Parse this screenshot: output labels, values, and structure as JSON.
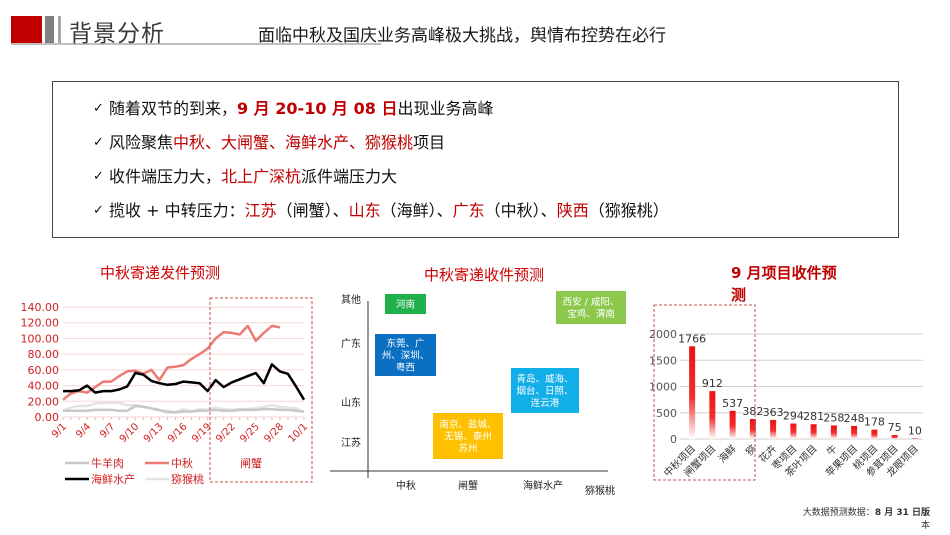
{
  "header": {
    "title": "背景分析",
    "subtitle": "面临中秋及国庆业务高峰极大挑战，舆情布控势在必行"
  },
  "bullets": [
    {
      "check": "✓",
      "segments": [
        {
          "t": "随着双节的到来，",
          "s": "n"
        },
        {
          "t": "9 月 20-10 月 08 日",
          "s": "hlb"
        },
        {
          "t": "出现业务高峰",
          "s": "n"
        }
      ]
    },
    {
      "check": "✓",
      "segments": [
        {
          "t": "风险聚焦",
          "s": "n"
        },
        {
          "t": "中秋、大闸蟹、海鲜水产、猕猴桃",
          "s": "hl"
        },
        {
          "t": "项目",
          "s": "n"
        }
      ]
    },
    {
      "check": "✓",
      "segments": [
        {
          "t": "收件端压力大，",
          "s": "n"
        },
        {
          "t": "北上广深杭",
          "s": "hl"
        },
        {
          "t": "派件端压力大",
          "s": "n"
        }
      ]
    },
    {
      "check": "✓",
      "segments": [
        {
          "t": "揽收 + 中转压力：",
          "s": "n"
        },
        {
          "t": "江苏",
          "s": "hl"
        },
        {
          "t": "（闸蟹）、",
          "s": "n"
        },
        {
          "t": "山东",
          "s": "hl"
        },
        {
          "t": "（海鲜）、",
          "s": "n"
        },
        {
          "t": "广东",
          "s": "hl"
        },
        {
          "t": "（中秋）、",
          "s": "n"
        },
        {
          "t": "陕西",
          "s": "hl"
        },
        {
          "t": "（猕猴桃）",
          "s": "n"
        }
      ]
    }
  ],
  "footer": {
    "line1": "大数据预测数据：",
    "date": "8 月 31 日版",
    "line2": "本"
  },
  "colors": {
    "accent_red": "#c00000",
    "title_red": "#d00000",
    "line_zhongqiu": "#ec7a74",
    "line_haixian": "#000000",
    "line_niuyangrou": "#c8c8c8",
    "line_mihoutao": "#e4e4e4",
    "bar_red": "#ee1111",
    "box_green": "#22b04b",
    "box_blue": "#0b6fc2",
    "box_cyan": "#12aee8",
    "box_yellow": "#ffc000",
    "box_lightgreen": "#8cc84b"
  },
  "chart_data": [
    {
      "type": "line",
      "title": "中秋寄递发件预测",
      "xlabel": "",
      "ylabel": "",
      "ylim": [
        0,
        140
      ],
      "yticks": [
        "0.00",
        "20.00",
        "40.00",
        "60.00",
        "80.00",
        "100.00",
        "120.00",
        "140.00"
      ],
      "x": [
        "9/1",
        "9/2",
        "9/3",
        "9/4",
        "9/5",
        "9/6",
        "9/7",
        "9/8",
        "9/9",
        "9/10",
        "9/11",
        "9/12",
        "9/13",
        "9/14",
        "9/15",
        "9/16",
        "9/17",
        "9/18",
        "9/19",
        "9/20",
        "9/21",
        "9/22",
        "9/23",
        "9/24",
        "9/25",
        "9/26",
        "9/27",
        "9/28",
        "9/29",
        "9/30",
        "10/1"
      ],
      "xtick_labels": [
        "9/1",
        "9/4",
        "9/7",
        "9/10",
        "9/13",
        "9/16",
        "9/19",
        "9/22",
        "9/25",
        "9/28",
        "10/1"
      ],
      "series": [
        {
          "name": "中秋",
          "values": [
            22,
            30,
            33,
            31,
            38,
            45,
            45,
            52,
            58,
            59,
            55,
            60,
            47,
            63,
            64,
            66,
            74,
            80,
            87,
            100,
            108,
            107,
            105,
            116,
            97,
            107,
            116,
            114,
            null,
            null,
            null
          ]
        },
        {
          "name": "海鲜水产",
          "values": [
            33,
            33,
            34,
            40,
            31,
            33,
            33,
            35,
            39,
            56,
            54,
            46,
            43,
            41,
            42,
            45,
            44,
            43,
            33,
            47,
            38,
            44,
            48,
            52,
            56,
            43,
            67,
            58,
            55,
            39,
            22
          ]
        },
        {
          "name": "牛羊肉",
          "values": [
            8,
            8,
            8,
            8,
            9,
            9,
            9,
            8,
            8,
            14,
            13,
            11,
            9,
            6,
            6,
            7,
            7,
            8,
            8,
            9,
            8,
            8,
            9,
            9,
            9,
            10,
            10,
            9,
            9,
            8,
            7
          ]
        },
        {
          "name": "猕猴桃",
          "values": [
            8,
            12,
            14,
            14,
            17,
            18,
            18,
            18,
            15,
            15,
            13,
            11,
            8,
            8,
            6,
            10,
            7,
            10,
            9,
            12,
            10,
            9,
            10,
            10,
            11,
            13,
            15,
            13,
            12,
            11,
            6
          ]
        },
        {
          "name": "闸蟹",
          "values": []
        }
      ],
      "highlight_range": [
        "9/20",
        "10/1"
      ],
      "legend": [
        "牛羊肉",
        "中秋",
        "闸蟹",
        "海鲜水产",
        "猕猴桃"
      ],
      "legend_position": "bottom",
      "grid": true
    },
    {
      "type": "table",
      "title": "中秋寄递收件预测",
      "y_categories": [
        "江苏",
        "山东",
        "广东",
        "其他"
      ],
      "x_categories": [
        "中秋",
        "闸蟹",
        "海鲜水产",
        "猕猴桃"
      ],
      "cells": [
        {
          "x": "中秋",
          "y": "其他",
          "text": "河南",
          "color": "#22b04b"
        },
        {
          "x": "中秋",
          "y": "广东",
          "text": "东莞、广州、深圳、粤西",
          "color": "#0b6fc2"
        },
        {
          "x": "闸蟹",
          "y": "江苏",
          "text": "南京、盐城、无锡、泰州苏州",
          "color": "#ffc000"
        },
        {
          "x": "海鲜水产",
          "y": "山东",
          "text": "青岛、威海、烟台、日照、连云港",
          "color": "#12aee8"
        },
        {
          "x": "猕猴桃",
          "y": "其他",
          "text": "西安 / 咸阳、宝鸡、渭南",
          "color": "#8cc84b"
        }
      ]
    },
    {
      "type": "bar",
      "title": "9 月项目收件预测",
      "categories": [
        "中秋项目",
        "闸蟹项目",
        "海鲜",
        "猕",
        "花卉",
        "枣项目",
        "茶叶项目",
        "牛",
        "苹果项目",
        "桃项目",
        "参茸项目",
        "龙眼项目"
      ],
      "values": [
        1766,
        912,
        537,
        382,
        363,
        294,
        281,
        258,
        248,
        178,
        75,
        10
      ],
      "ylim": [
        0,
        2000
      ],
      "yticks": [
        "0",
        "500",
        "1000",
        "1500",
        "2000"
      ],
      "highlight_range": [
        "中秋项目",
        "猕"
      ],
      "grid": true
    }
  ],
  "charts": {
    "line_title": "中秋寄递发件预测",
    "matrix_title": "中秋寄递收件预测",
    "bar_title_line1": "9 月项目收件预",
    "bar_title_line2": "测"
  }
}
